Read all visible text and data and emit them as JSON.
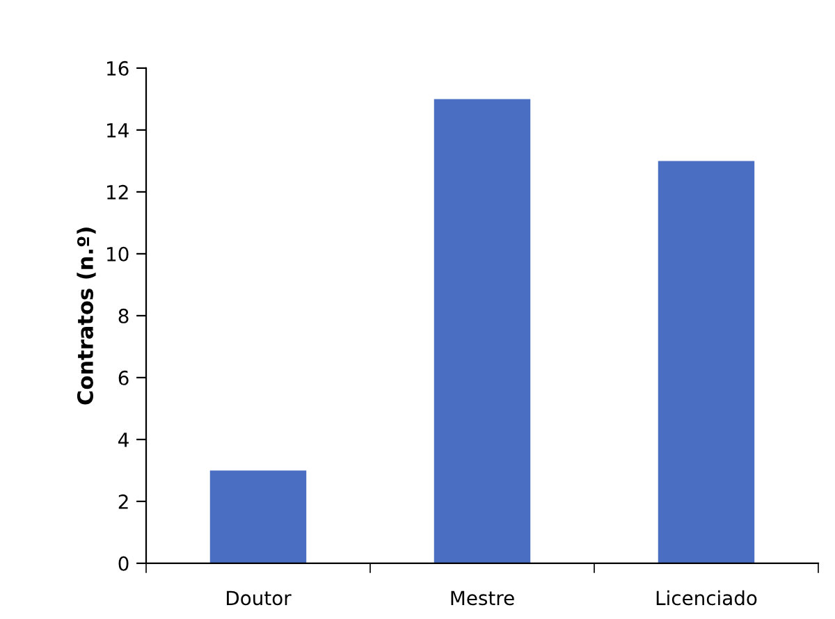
{
  "chart_data": {
    "type": "bar",
    "ylabel": "Contratos (n.º)",
    "categories": [
      "Doutor",
      "Mestre",
      "Licenciado"
    ],
    "values": [
      3,
      15,
      13
    ],
    "color": "#4a6fc2",
    "ylim": [
      0,
      16
    ],
    "yticks": [
      0,
      2,
      4,
      6,
      8,
      10,
      12,
      14,
      16
    ],
    "grid": false,
    "legend": false
  }
}
